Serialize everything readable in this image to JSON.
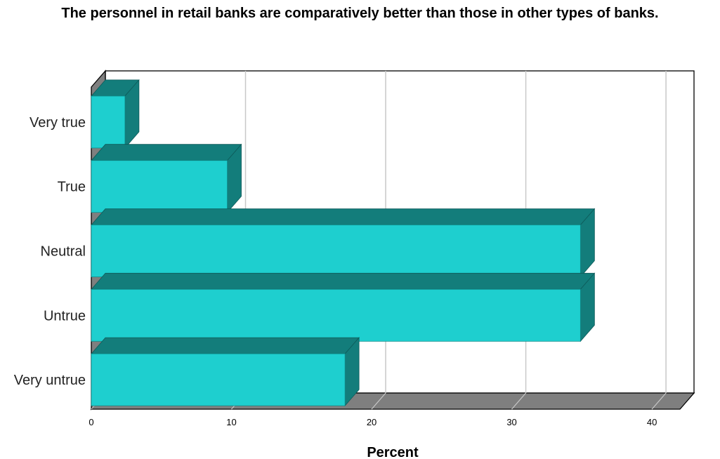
{
  "chart_data": {
    "type": "bar",
    "orientation": "horizontal",
    "title": "The personnel in retail banks are comparatively better than those in other types of banks.",
    "xlabel": "Percent",
    "ylabel": "",
    "categories": [
      "Very true",
      "True",
      "Neutral",
      "Untrue",
      "Very untrue"
    ],
    "values": [
      2.4,
      9.7,
      34.9,
      34.9,
      18.1
    ],
    "xlim": [
      0,
      42
    ],
    "xticks": [
      0,
      10,
      20,
      30,
      40
    ],
    "grid": true,
    "style": "3d",
    "colors": {
      "bar_front": "#1ecfcf",
      "bar_side": "#137d7b",
      "floor": "#7f7f7f",
      "wall": "#7f7f7f"
    }
  }
}
